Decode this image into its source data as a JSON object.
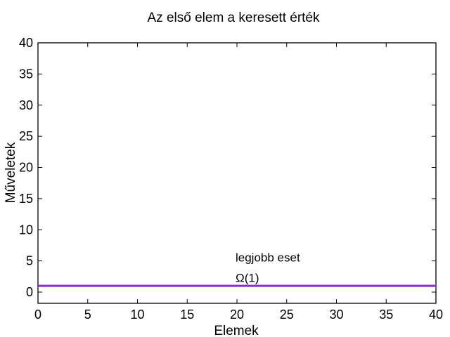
{
  "chart_data": {
    "type": "line",
    "title": "Az első elem a keresett érték",
    "xlabel": "Elemek",
    "ylabel": "Műveletek",
    "xlim": [
      0,
      40
    ],
    "ylim": [
      -1.8,
      40
    ],
    "xticks": [
      0,
      5,
      10,
      15,
      20,
      25,
      30,
      35,
      40
    ],
    "yticks": [
      0,
      5,
      10,
      15,
      20,
      25,
      30,
      35,
      40
    ],
    "grid": false,
    "series": [
      {
        "name": "legjobb eset",
        "color": "#8b2bd6",
        "x": [
          0,
          40
        ],
        "y": [
          1,
          1
        ]
      }
    ],
    "annotations": [
      {
        "text": "legjobb eset",
        "x": 20,
        "y": 5.6
      },
      {
        "text": "Ω(1)",
        "x": 20,
        "y": 2.3
      }
    ]
  }
}
